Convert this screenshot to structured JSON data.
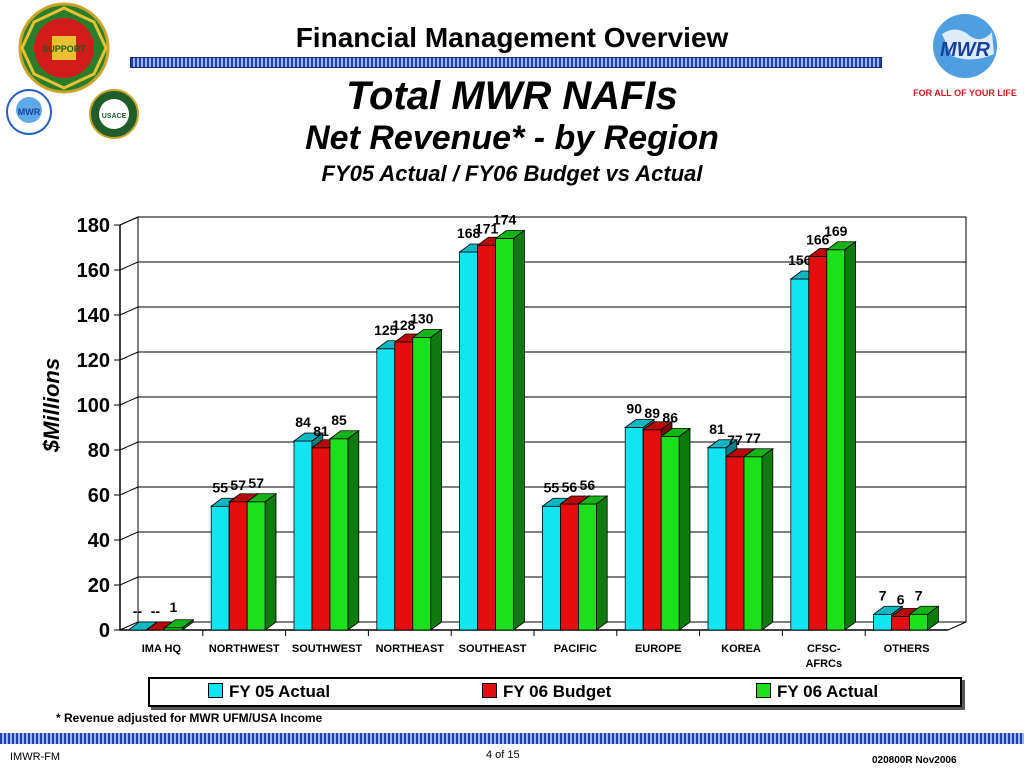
{
  "header": {
    "title": "Financial Management Overview"
  },
  "titles": {
    "line1": "Total MWR NAFIs",
    "line2": "Net Revenue* - by Region",
    "line3": "FY05 Actual / FY06 Budget vs Actual"
  },
  "logos": {
    "left_large_text": "SUSTAIN SUPPORT DEFEND",
    "right_text": "U.S.ARMY MWR FOR ALL OF YOUR LIFE",
    "small1_text": "MWR",
    "small2_text": "USACE"
  },
  "colors": {
    "fy05_actual": "#11e5f2",
    "fy06_budget": "#e50e0e",
    "fy06_actual": "#1be01b",
    "stripe": "#1f3fae"
  },
  "chart_data": {
    "type": "bar",
    "categories": [
      "IMA HQ",
      "NORTHWEST",
      "SOUTHWEST",
      "NORTHEAST",
      "SOUTHEAST",
      "PACIFIC",
      "EUROPE",
      "KOREA",
      "CFSC-\nAFRCs",
      "OTHERS"
    ],
    "series": [
      {
        "name": "FY 05 Actual",
        "values": [
          0,
          55,
          84,
          125,
          168,
          55,
          90,
          81,
          156,
          7
        ],
        "labels": [
          "--",
          "55",
          "84",
          "125",
          "168",
          "55",
          "90",
          "81",
          "156",
          "7"
        ]
      },
      {
        "name": "FY 06 Budget",
        "values": [
          0,
          57,
          81,
          128,
          171,
          56,
          89,
          77,
          166,
          6
        ],
        "labels": [
          "--",
          "57",
          "81",
          "128",
          "171",
          "56",
          "89",
          "77",
          "166",
          "6"
        ]
      },
      {
        "name": "FY 06 Actual",
        "values": [
          1,
          57,
          85,
          130,
          174,
          56,
          86,
          77,
          169,
          7
        ],
        "labels": [
          "1",
          "57",
          "85",
          "130",
          "174",
          "56",
          "86",
          "77",
          "169",
          "7"
        ]
      }
    ],
    "ylabel": "$Millions",
    "ylim": [
      0,
      180
    ],
    "yticks": [
      "0",
      "20",
      "40",
      "60",
      "80",
      "100",
      "120",
      "140",
      "160",
      "180"
    ],
    "grid": true,
    "legend_position": "bottom"
  },
  "footnote": "* Revenue adjusted for MWR UFM/USA Income",
  "footer": {
    "left": "IMWR-FM",
    "page": "4 of 15",
    "right": "020800R Nov2006"
  }
}
